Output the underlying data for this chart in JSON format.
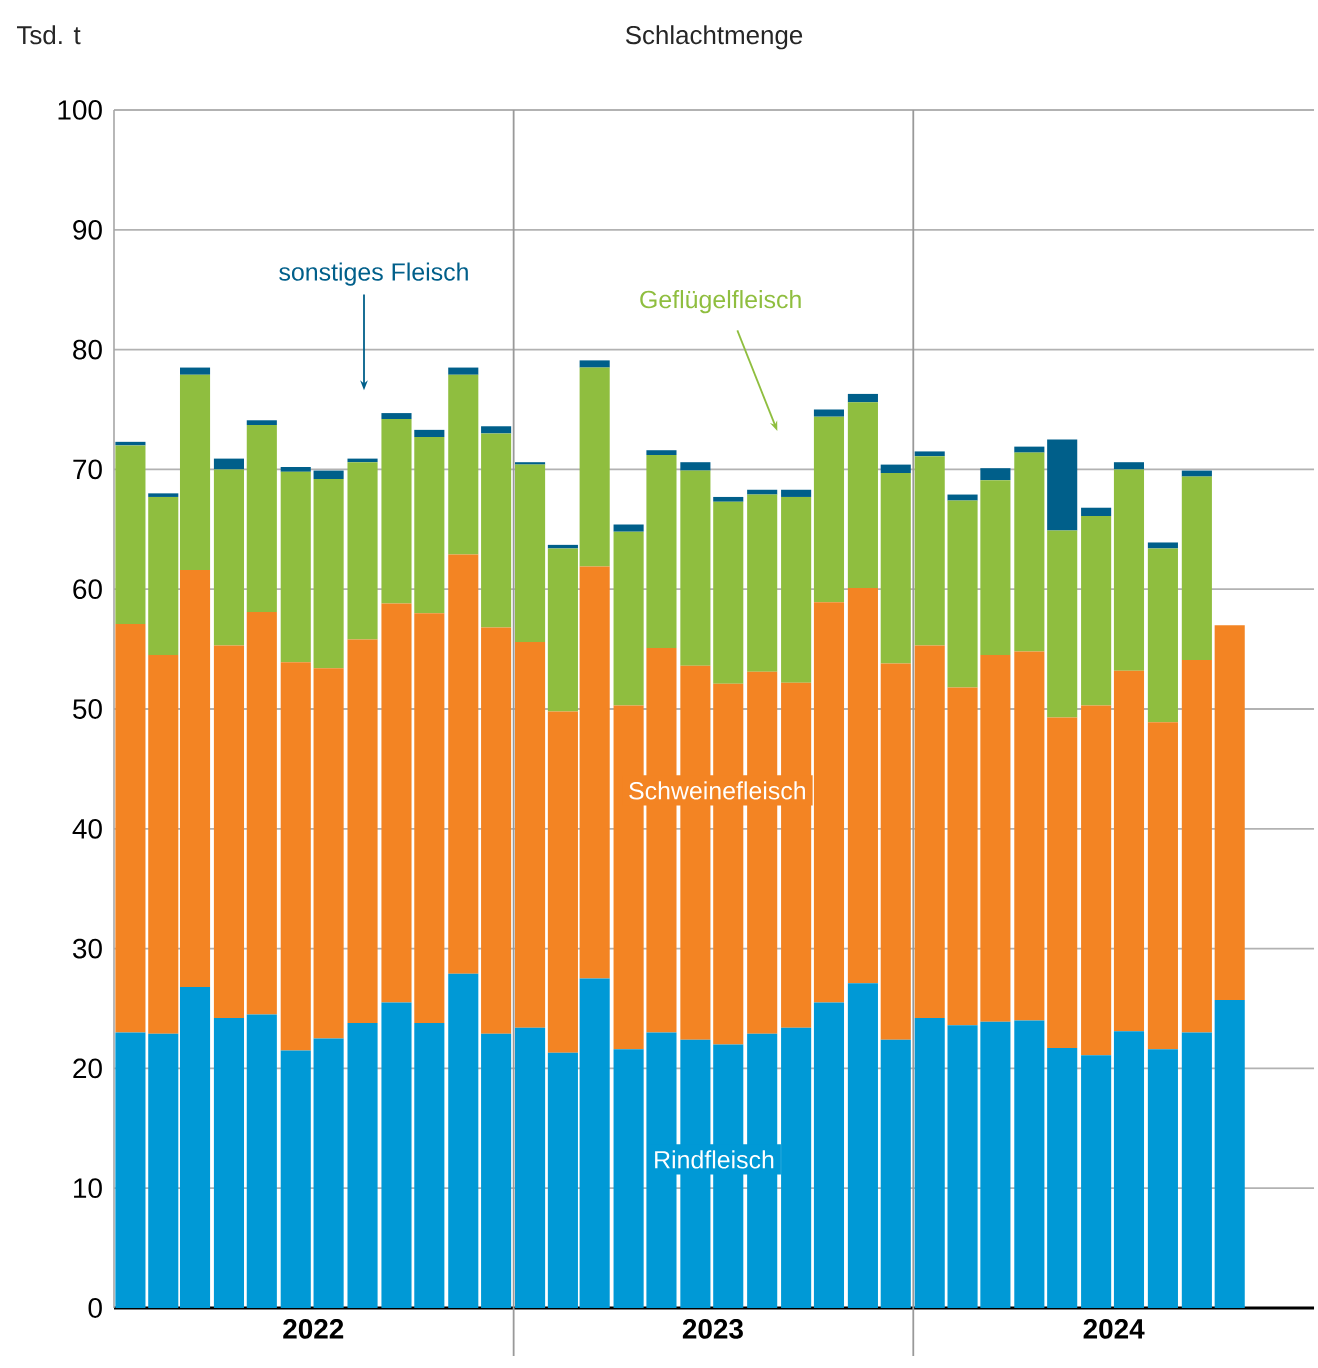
{
  "chart_data": {
    "type": "bar",
    "stacked": true,
    "title": "Schlachtmenge",
    "ylabel": "Tsd. t",
    "x": [
      "2022-01-16",
      "2022-02-15",
      "2022-03-16",
      "2022-04-16",
      "2022-05-16",
      "2022-06-16",
      "2022-07-16",
      "2022-08-16",
      "2022-09-16",
      "2022-10-16",
      "2022-11-16",
      "2022-12-16",
      "2023-01-16",
      "2023-02-15",
      "2023-03-16",
      "2023-04-16",
      "2023-05-16",
      "2023-06-16",
      "2023-07-16",
      "2023-08-16",
      "2023-09-16",
      "2023-10-16",
      "2023-11-16",
      "2023-12-16",
      "2024-01-16",
      "2024-02-15",
      "2024-03-16",
      "2024-04-16",
      "2024-05-16",
      "2024-06-16",
      "2024-07-16",
      "2024-08-16",
      "2024-09-16",
      "2024-10-16"
    ],
    "series": [
      {
        "name": "Rindfleisch",
        "color": "#0099d6",
        "values": [
          23.0,
          22.9,
          26.8,
          24.2,
          24.5,
          21.5,
          22.5,
          23.8,
          25.5,
          23.8,
          27.9,
          22.9,
          23.4,
          21.3,
          27.5,
          21.6,
          23.0,
          22.4,
          22.0,
          22.9,
          23.4,
          25.5,
          27.1,
          22.4,
          24.2,
          23.6,
          23.9,
          24.0,
          21.7,
          21.1,
          23.1,
          21.6,
          23.0,
          25.7
        ]
      },
      {
        "name": "Schweinefleisch",
        "color": "#f38423",
        "values": [
          34.1,
          31.6,
          34.8,
          31.1,
          33.6,
          32.4,
          30.9,
          32.0,
          33.3,
          34.2,
          35.0,
          33.9,
          32.2,
          28.5,
          34.4,
          28.7,
          32.1,
          31.2,
          30.1,
          30.2,
          28.8,
          33.4,
          33.0,
          31.4,
          31.1,
          28.2,
          30.6,
          30.8,
          27.6,
          29.2,
          30.1,
          27.3,
          31.1,
          31.3
        ]
      },
      {
        "name": "Geflügelfleisch",
        "color": "#8fbe3f",
        "values": [
          14.9,
          13.2,
          16.3,
          14.7,
          15.6,
          15.9,
          15.8,
          14.8,
          15.4,
          14.7,
          15.0,
          16.2,
          14.8,
          13.6,
          16.6,
          14.5,
          16.1,
          16.3,
          15.2,
          14.8,
          15.5,
          15.5,
          15.5,
          15.9,
          15.8,
          15.6,
          14.6,
          16.6,
          15.6,
          15.8,
          16.8,
          14.5,
          15.3,
          null
        ]
      },
      {
        "name": "sonstiges Fleisch",
        "color": "#005f8a",
        "values": [
          0.3,
          0.3,
          0.6,
          0.9,
          0.4,
          0.4,
          0.7,
          0.3,
          0.5,
          0.6,
          0.6,
          0.6,
          0.2,
          0.3,
          0.6,
          0.6,
          0.4,
          0.7,
          0.4,
          0.4,
          0.6,
          0.6,
          0.7,
          0.7,
          0.4,
          0.5,
          1.0,
          0.5,
          7.6,
          0.7,
          0.6,
          0.5,
          0.5,
          null
        ]
      }
    ],
    "xlim": [
      "2022-01-01",
      "2025-01-01"
    ],
    "xticks": [
      {
        "value": "2022-07-02",
        "label": "2022"
      },
      {
        "value": "2023-07-02",
        "label": "2023"
      },
      {
        "value": "2024-07-02",
        "label": "2024"
      }
    ],
    "ylim": [
      0,
      100
    ],
    "yticks": [
      0,
      10,
      20,
      30,
      40,
      50,
      60,
      70,
      80,
      90,
      100
    ],
    "grid": "y",
    "ref_lines": [
      {
        "axis": "x",
        "value": "2023-01-01",
        "color": "#999999"
      },
      {
        "axis": "x",
        "value": "2024-01-01",
        "color": "#999999"
      }
    ]
  }
}
